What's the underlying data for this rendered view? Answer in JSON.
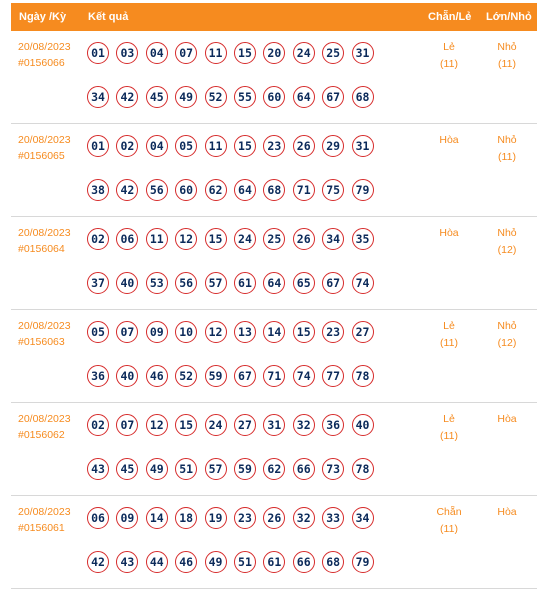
{
  "header": {
    "date_label": "Ngày /Kỳ",
    "result_label": "Kết quả",
    "evenodd_label": "Chẵn/Lẻ",
    "bigsmall_label": "Lớn/Nhỏ"
  },
  "draws": [
    {
      "date": "20/08/2023",
      "id": "#0156066",
      "row1": [
        "01",
        "03",
        "04",
        "07",
        "11",
        "15",
        "20",
        "24",
        "25",
        "31"
      ],
      "row2": [
        "34",
        "42",
        "45",
        "49",
        "52",
        "55",
        "60",
        "64",
        "67",
        "68"
      ],
      "evenodd": "Lẻ",
      "evenodd_count": "(11)",
      "bigsmall": "Nhỏ",
      "bigsmall_count": "(11)"
    },
    {
      "date": "20/08/2023",
      "id": "#0156065",
      "row1": [
        "01",
        "02",
        "04",
        "05",
        "11",
        "15",
        "23",
        "26",
        "29",
        "31"
      ],
      "row2": [
        "38",
        "42",
        "56",
        "60",
        "62",
        "64",
        "68",
        "71",
        "75",
        "79"
      ],
      "evenodd": "Hòa",
      "evenodd_count": "",
      "bigsmall": "Nhỏ",
      "bigsmall_count": "(11)"
    },
    {
      "date": "20/08/2023",
      "id": "#0156064",
      "row1": [
        "02",
        "06",
        "11",
        "12",
        "15",
        "24",
        "25",
        "26",
        "34",
        "35"
      ],
      "row2": [
        "37",
        "40",
        "53",
        "56",
        "57",
        "61",
        "64",
        "65",
        "67",
        "74"
      ],
      "evenodd": "Hòa",
      "evenodd_count": "",
      "bigsmall": "Nhỏ",
      "bigsmall_count": "(12)"
    },
    {
      "date": "20/08/2023",
      "id": "#0156063",
      "row1": [
        "05",
        "07",
        "09",
        "10",
        "12",
        "13",
        "14",
        "15",
        "23",
        "27"
      ],
      "row2": [
        "36",
        "40",
        "46",
        "52",
        "59",
        "67",
        "71",
        "74",
        "77",
        "78"
      ],
      "evenodd": "Lẻ",
      "evenodd_count": "(11)",
      "bigsmall": "Nhỏ",
      "bigsmall_count": "(12)"
    },
    {
      "date": "20/08/2023",
      "id": "#0156062",
      "row1": [
        "02",
        "07",
        "12",
        "15",
        "24",
        "27",
        "31",
        "32",
        "36",
        "40"
      ],
      "row2": [
        "43",
        "45",
        "49",
        "51",
        "57",
        "59",
        "62",
        "66",
        "73",
        "78"
      ],
      "evenodd": "Lẻ",
      "evenodd_count": "(11)",
      "bigsmall": "Hòa",
      "bigsmall_count": ""
    },
    {
      "date": "20/08/2023",
      "id": "#0156061",
      "row1": [
        "06",
        "09",
        "14",
        "18",
        "19",
        "23",
        "26",
        "32",
        "33",
        "34"
      ],
      "row2": [
        "42",
        "43",
        "44",
        "46",
        "49",
        "51",
        "61",
        "66",
        "68",
        "79"
      ],
      "evenodd": "Chẵn",
      "evenodd_count": "(11)",
      "bigsmall": "Hòa",
      "bigsmall_count": ""
    }
  ]
}
